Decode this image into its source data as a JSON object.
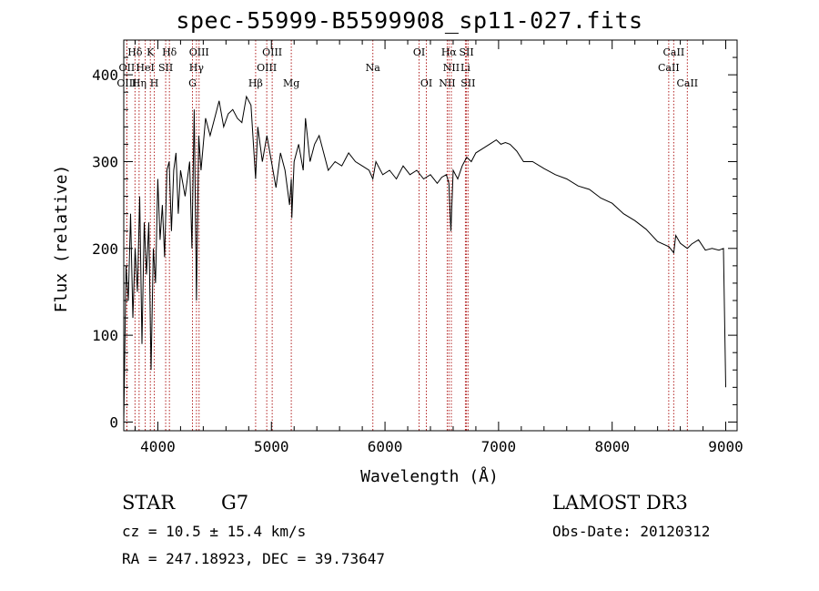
{
  "chart_data": {
    "type": "line",
    "title": "spec-55999-B5599908_sp11-027.fits",
    "xlabel": "Wavelength (Å)",
    "ylabel": "Flux (relative)",
    "xlim": [
      3700,
      9100
    ],
    "ylim": [
      -10,
      440
    ],
    "x_ticks": [
      4000,
      5000,
      6000,
      7000,
      8000,
      9000
    ],
    "y_ticks": [
      0,
      100,
      200,
      300,
      400
    ],
    "grid": false,
    "series": [
      {
        "name": "flux",
        "x": [
          3700,
          3720,
          3740,
          3760,
          3780,
          3800,
          3820,
          3840,
          3860,
          3880,
          3900,
          3920,
          3940,
          3960,
          3980,
          4000,
          4020,
          4040,
          4060,
          4080,
          4100,
          4120,
          4140,
          4160,
          4180,
          4200,
          4240,
          4280,
          4300,
          4320,
          4340,
          4360,
          4380,
          4420,
          4460,
          4500,
          4540,
          4580,
          4620,
          4660,
          4700,
          4740,
          4780,
          4820,
          4861,
          4880,
          4920,
          4960,
          5000,
          5040,
          5080,
          5120,
          5160,
          5175,
          5180,
          5200,
          5240,
          5280,
          5300,
          5340,
          5380,
          5420,
          5460,
          5500,
          5560,
          5620,
          5680,
          5740,
          5800,
          5860,
          5893,
          5920,
          5980,
          6040,
          6100,
          6160,
          6220,
          6280,
          6340,
          6400,
          6460,
          6500,
          6540,
          6563,
          6580,
          6600,
          6640,
          6680,
          6720,
          6760,
          6800,
          6860,
          6920,
          6980,
          7020,
          7060,
          7100,
          7160,
          7220,
          7300,
          7400,
          7500,
          7600,
          7700,
          7800,
          7900,
          8000,
          8100,
          8200,
          8300,
          8400,
          8500,
          8542,
          8560,
          8600,
          8662,
          8700,
          8760,
          8820,
          8880,
          8940,
          8980,
          9000
        ],
        "y": [
          0,
          180,
          140,
          240,
          120,
          200,
          150,
          260,
          90,
          230,
          170,
          230,
          60,
          200,
          160,
          280,
          210,
          250,
          190,
          290,
          300,
          220,
          290,
          310,
          240,
          290,
          260,
          300,
          200,
          360,
          140,
          330,
          290,
          350,
          330,
          350,
          370,
          340,
          355,
          360,
          350,
          345,
          375,
          365,
          280,
          340,
          300,
          330,
          300,
          270,
          310,
          290,
          250,
          280,
          235,
          300,
          320,
          290,
          350,
          300,
          320,
          330,
          310,
          290,
          300,
          295,
          310,
          300,
          295,
          290,
          280,
          300,
          285,
          290,
          280,
          295,
          285,
          290,
          280,
          285,
          275,
          282,
          285,
          275,
          220,
          290,
          280,
          295,
          305,
          300,
          310,
          315,
          320,
          325,
          320,
          322,
          320,
          312,
          300,
          300,
          292,
          285,
          280,
          272,
          268,
          258,
          252,
          240,
          232,
          222,
          208,
          202,
          195,
          215,
          206,
          200,
          205,
          210,
          198,
          200,
          198,
          200,
          40
        ]
      }
    ],
    "spectral_lines": [
      {
        "label": "Hδ",
        "x": 3799,
        "row": 1
      },
      {
        "label": "K",
        "x": 3934,
        "row": 1
      },
      {
        "label": "Hδ",
        "x": 4102,
        "row": 1
      },
      {
        "label": "OIII",
        "x": 4363,
        "row": 1
      },
      {
        "label": "OIII",
        "x": 5007,
        "row": 1
      },
      {
        "label": "OI",
        "x": 6300,
        "row": 1
      },
      {
        "label": "Hα",
        "x": 6563,
        "row": 1
      },
      {
        "label": "SII",
        "x": 6717,
        "row": 1
      },
      {
        "label": "CaII",
        "x": 8542,
        "row": 1
      },
      {
        "label": "OII",
        "x": 3727,
        "row": 2
      },
      {
        "label": "HeI",
        "x": 3889,
        "row": 2
      },
      {
        "label": "SII",
        "x": 4069,
        "row": 2
      },
      {
        "label": "Hγ",
        "x": 4340,
        "row": 2
      },
      {
        "label": "OIII",
        "x": 4959,
        "row": 2
      },
      {
        "label": "Na",
        "x": 5893,
        "row": 2
      },
      {
        "label": "NII",
        "x": 6584,
        "row": 2
      },
      {
        "label": "Li",
        "x": 6708,
        "row": 2
      },
      {
        "label": "CaII",
        "x": 8498,
        "row": 2
      },
      {
        "label": "OIII",
        "x": 3727,
        "row": 3
      },
      {
        "label": "Hη",
        "x": 3835,
        "row": 3
      },
      {
        "label": "H",
        "x": 3969,
        "row": 3
      },
      {
        "label": "G",
        "x": 4305,
        "row": 3
      },
      {
        "label": "Hβ",
        "x": 4861,
        "row": 3
      },
      {
        "label": "Mg",
        "x": 5175,
        "row": 3
      },
      {
        "label": "OI",
        "x": 6364,
        "row": 3
      },
      {
        "label": "NII",
        "x": 6548,
        "row": 3
      },
      {
        "label": "SII",
        "x": 6731,
        "row": 3
      },
      {
        "label": "CaII",
        "x": 8662,
        "row": 3
      }
    ],
    "colors": {
      "spectrum": "#000000",
      "lines": "#b22222"
    }
  },
  "info": {
    "object_class": "STAR",
    "subclass": "G7",
    "survey": "LAMOST DR3",
    "redshift": "cz = 10.5 ± 15.4 km/s",
    "obs_date": "Obs-Date: 20120312",
    "coords": "RA = 247.18923, DEC =  39.73647"
  }
}
